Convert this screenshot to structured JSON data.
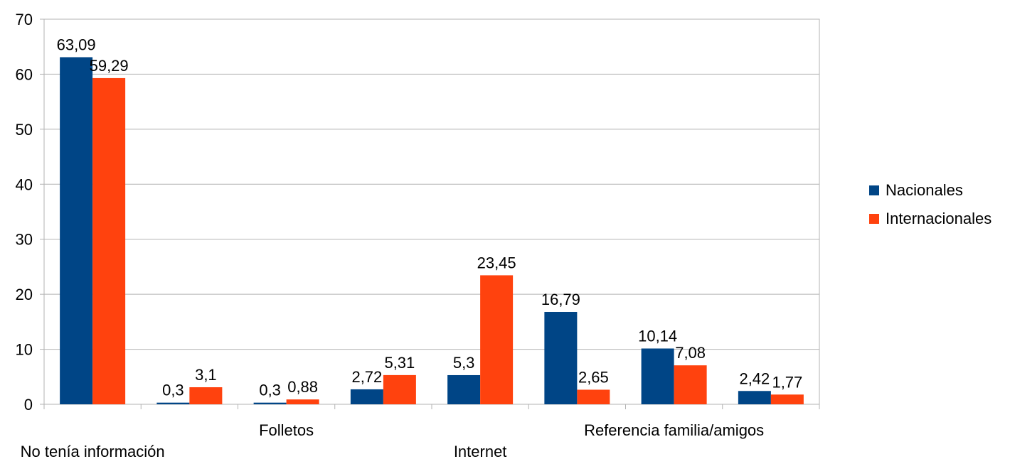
{
  "chart_data": {
    "type": "bar",
    "categories": [
      "No tenía información",
      "",
      "Folletos",
      "",
      "Internet",
      "",
      "Referencia familia/amigos",
      ""
    ],
    "series": [
      {
        "name": "Nacionales",
        "color": "#004586",
        "values": [
          63.09,
          0.3,
          0.3,
          2.72,
          5.3,
          16.79,
          10.14,
          2.42
        ],
        "labels": [
          "63,09",
          "0,3",
          "0,3",
          "2,72",
          "5,3",
          "16,79",
          "10,14",
          "2,42"
        ]
      },
      {
        "name": "Internacionales",
        "color": "#ff420e",
        "values": [
          59.29,
          3.1,
          0.88,
          5.31,
          23.45,
          2.65,
          7.08,
          1.77
        ],
        "labels": [
          "59,29",
          "3,1",
          "0,88",
          "5,31",
          "23,45",
          "2,65",
          "7,08",
          "1,77"
        ]
      }
    ],
    "ylim": [
      0,
      70
    ],
    "yticks": [
      0,
      10,
      20,
      30,
      40,
      50,
      60,
      70
    ],
    "grid": true,
    "legend_position": "right"
  }
}
